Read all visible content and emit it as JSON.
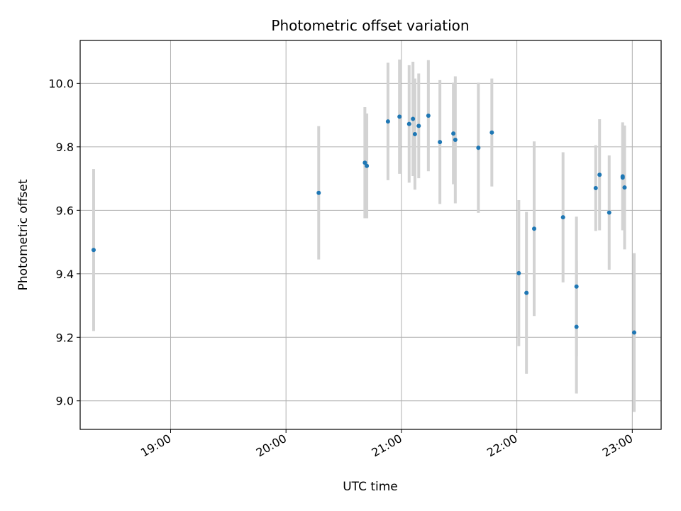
{
  "chart_data": {
    "type": "scatter",
    "title": "Photometric offset variation",
    "xlabel": "UTC time",
    "ylabel": "Photometric offset",
    "x_unit": "UTC time (HH:MM)",
    "xlim": [
      "18:13",
      "23:15"
    ],
    "ylim": [
      8.91,
      10.135
    ],
    "grid": true,
    "x_ticks": [
      "19:00",
      "20:00",
      "21:00",
      "22:00",
      "23:00"
    ],
    "y_ticks": [
      "9.0",
      "9.2",
      "9.4",
      "9.6",
      "9.8",
      "10.0"
    ],
    "colors": {
      "point": "#1f77b4",
      "errorbar": "#d3d3d3",
      "grid": "#b0b0b0"
    },
    "points": [
      {
        "t": "18:20",
        "y": 9.475,
        "err": 0.255
      },
      {
        "t": "20:17",
        "y": 9.655,
        "err": 0.21
      },
      {
        "t": "20:41",
        "y": 9.75,
        "err": 0.175
      },
      {
        "t": "20:42",
        "y": 9.74,
        "err": 0.165
      },
      {
        "t": "20:53",
        "y": 9.88,
        "err": 0.185
      },
      {
        "t": "20:59",
        "y": 9.895,
        "err": 0.18
      },
      {
        "t": "21:04",
        "y": 9.872,
        "err": 0.185
      },
      {
        "t": "21:06",
        "y": 9.888,
        "err": 0.18
      },
      {
        "t": "21:07",
        "y": 9.84,
        "err": 0.175
      },
      {
        "t": "21:09",
        "y": 9.866,
        "err": 0.165
      },
      {
        "t": "21:14",
        "y": 9.898,
        "err": 0.175
      },
      {
        "t": "21:20",
        "y": 9.815,
        "err": 0.195
      },
      {
        "t": "21:27",
        "y": 9.842,
        "err": 0.16
      },
      {
        "t": "21:28",
        "y": 9.822,
        "err": 0.2
      },
      {
        "t": "21:40",
        "y": 9.797,
        "err": 0.205
      },
      {
        "t": "21:47",
        "y": 9.845,
        "err": 0.17
      },
      {
        "t": "22:01",
        "y": 9.402,
        "err": 0.23
      },
      {
        "t": "22:05",
        "y": 9.34,
        "err": 0.255
      },
      {
        "t": "22:09",
        "y": 9.542,
        "err": 0.275
      },
      {
        "t": "22:24",
        "y": 9.578,
        "err": 0.205
      },
      {
        "t": "22:31",
        "y": 9.36,
        "err": 0.22
      },
      {
        "t": "22:31",
        "y": 9.233,
        "err": 0.21
      },
      {
        "t": "22:41",
        "y": 9.67,
        "err": 0.135
      },
      {
        "t": "22:43",
        "y": 9.712,
        "err": 0.175
      },
      {
        "t": "22:48",
        "y": 9.593,
        "err": 0.18
      },
      {
        "t": "22:55",
        "y": 9.707,
        "err": 0.17
      },
      {
        "t": "22:55",
        "y": 9.703,
        "err": 0.165
      },
      {
        "t": "22:56",
        "y": 9.672,
        "err": 0.195
      },
      {
        "t": "23:01",
        "y": 9.215,
        "err": 0.25
      }
    ]
  }
}
